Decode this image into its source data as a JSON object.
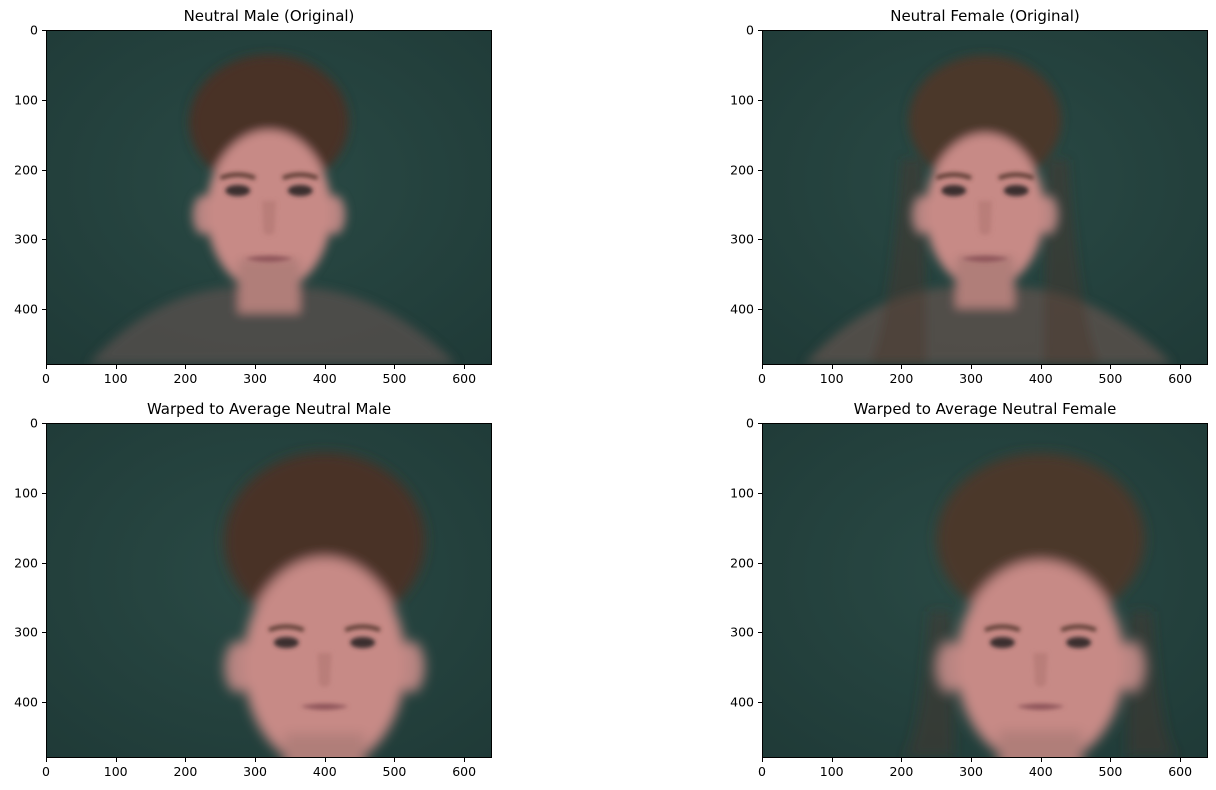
{
  "panels": [
    {
      "title": "Neutral Male (Original)",
      "subject": "male",
      "warped": false
    },
    {
      "title": "Neutral Female (Original)",
      "subject": "female",
      "warped": false
    },
    {
      "title": "Warped to Average Neutral Male",
      "subject": "male",
      "warped": true
    },
    {
      "title": "Warped to Average Neutral Female",
      "subject": "female",
      "warped": true
    }
  ],
  "axes": {
    "x_ticks": [
      "0",
      "100",
      "200",
      "300",
      "400",
      "500",
      "600"
    ],
    "y_ticks": [
      "0",
      "100",
      "200",
      "300",
      "400"
    ],
    "x_range": [
      0,
      640
    ],
    "y_range": [
      0,
      480
    ]
  },
  "colors": {
    "background": "#1f3a37",
    "skin": "#c78a86",
    "hair_male": "#4a3328",
    "hair_female": "#4b372c"
  }
}
